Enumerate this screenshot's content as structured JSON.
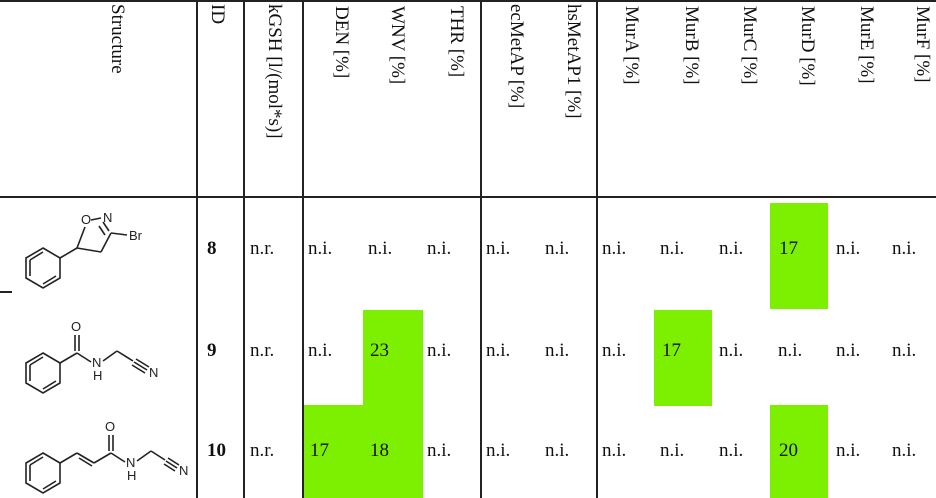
{
  "table": {
    "headers": {
      "structure": "Structure",
      "id": "ID",
      "kgsh": "kGSH [l/(mol*s)]",
      "den": "DEN [%]",
      "wnv": "WNV [%]",
      "thr": "THR [%]",
      "ecmetap": "ecMetAP [%]",
      "hsmetap1": "hsMetAP1 [%]",
      "mura": "MurA [%]",
      "murb": "MurB [%]",
      "murc": "MurC [%]",
      "murd": "MurD [%]",
      "mure": "MurE [%]",
      "murf": "MurF [%]"
    },
    "rows": [
      {
        "id": "8",
        "atoms": {
          "o": "O",
          "n": "N",
          "br": "Br"
        },
        "kgsh": "n.r.",
        "den": "n.i.",
        "wnv": "n.i.",
        "thr": "n.i.",
        "ecmetap": "n.i.",
        "hsmetap1": "n.i.",
        "mura": "n.i.",
        "murb": "n.i.",
        "murc": "n.i.",
        "murd": "17",
        "mure": "n.i.",
        "murf": "n.i."
      },
      {
        "id": "9",
        "atoms": {
          "o": "O",
          "nh": "N",
          "h": "H",
          "n": "N"
        },
        "kgsh": "n.r.",
        "den": "n.i.",
        "wnv": "23",
        "thr": "n.i.",
        "ecmetap": "n.i.",
        "hsmetap1": "n.i.",
        "mura": "n.i.",
        "murb": "17",
        "murc": "n.i.",
        "murd": "n.i.",
        "mure": "n.i.",
        "murf": "n.i."
      },
      {
        "id": "10",
        "atoms": {
          "o": "O",
          "nh": "N",
          "h": "H",
          "n": "N"
        },
        "kgsh": "n.r.",
        "den": "17",
        "wnv": "18",
        "thr": "n.i.",
        "ecmetap": "n.i.",
        "hsmetap1": "n.i.",
        "mura": "n.i.",
        "murb": "n.i.",
        "murc": "n.i.",
        "murd": "20",
        "mure": "n.i.",
        "murf": "n.i."
      }
    ],
    "highlight_color": "#7cf000"
  }
}
